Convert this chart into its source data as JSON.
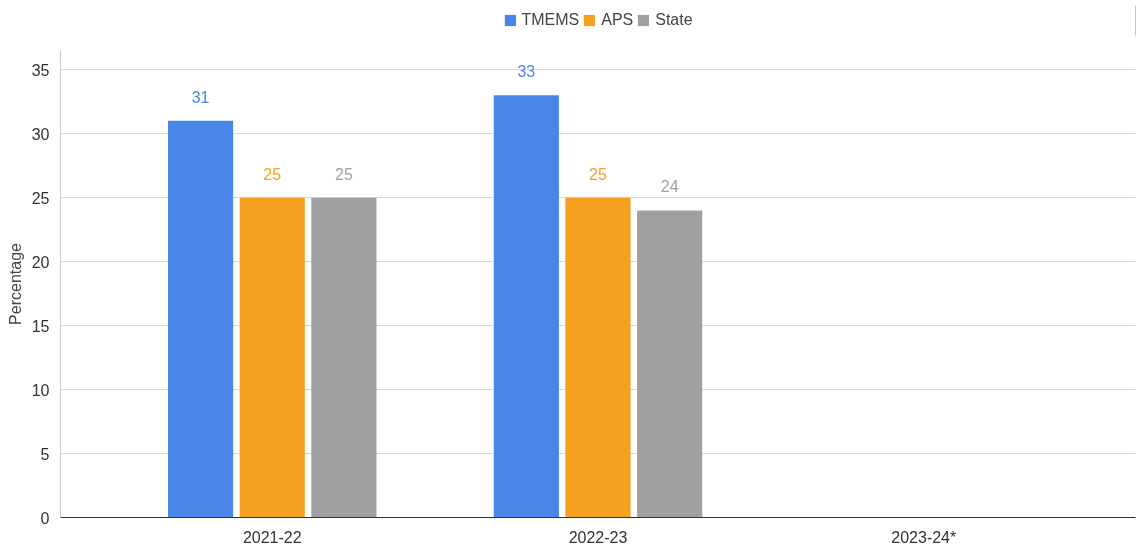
{
  "chart_data": {
    "type": "bar",
    "ylabel": "Percentage",
    "categories": [
      "2021-22",
      "2022-23",
      "2023-24*"
    ],
    "series": [
      {
        "name": "TMEMS",
        "color": "#4a86e8",
        "values": [
          31,
          33,
          null
        ]
      },
      {
        "name": "APS",
        "color": "#f6a01f",
        "values": [
          25,
          25,
          null
        ]
      },
      {
        "name": "State",
        "color": "#a0a0a0",
        "values": [
          25,
          24,
          null
        ]
      }
    ],
    "ylim": [
      0,
      36.5
    ],
    "yticks": [
      0,
      5,
      10,
      15,
      20,
      25,
      30,
      35
    ],
    "grid": "y",
    "legend": "top",
    "data_labels": true
  }
}
